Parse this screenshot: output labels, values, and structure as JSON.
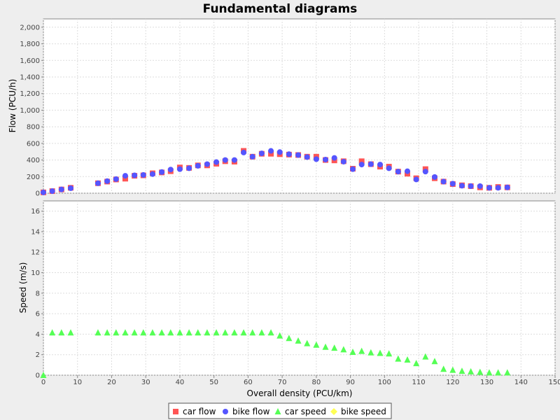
{
  "chart_data": {
    "type": "scatter",
    "title": "Fundamental diagrams",
    "xlabel": "Overall density (PCU/km)",
    "xlim": [
      0,
      150
    ],
    "x_ticks": [
      "0",
      "10",
      "20",
      "30",
      "40",
      "50",
      "60",
      "70",
      "80",
      "90",
      "100",
      "110",
      "120",
      "130",
      "140",
      "150"
    ],
    "grid": true,
    "legend_placement": "bottom",
    "subplots": [
      {
        "name": "flow",
        "ylabel": "Flow (PCU/h)",
        "ylim": [
          0,
          2100
        ],
        "y_ticks": [
          0,
          200,
          400,
          600,
          800,
          1000,
          1200,
          1400,
          1600,
          1800,
          2000
        ],
        "y_tick_labels": [
          "0",
          "200",
          "400",
          "600",
          "800",
          "1,000",
          "1,200",
          "1,400",
          "1,600",
          "1,800",
          "2,000"
        ],
        "series": [
          {
            "name": "car flow",
            "marker": "square",
            "color": "#ff5555",
            "points": [
              [
                0,
                10
              ],
              [
                2.6,
                25
              ],
              [
                5.3,
                45
              ],
              [
                8,
                65
              ],
              [
                16,
                120
              ],
              [
                18.7,
                140
              ],
              [
                21.3,
                165
              ],
              [
                24,
                175
              ],
              [
                26.7,
                210
              ],
              [
                29.3,
                215
              ],
              [
                32,
                240
              ],
              [
                34.7,
                250
              ],
              [
                37.3,
                265
              ],
              [
                40,
                310
              ],
              [
                42.7,
                305
              ],
              [
                45.3,
                335
              ],
              [
                48,
                335
              ],
              [
                50.7,
                355
              ],
              [
                53.3,
                385
              ],
              [
                56,
                380
              ],
              [
                58.7,
                510
              ],
              [
                61.3,
                440
              ],
              [
                64,
                475
              ],
              [
                66.7,
                475
              ],
              [
                69.3,
                470
              ],
              [
                72,
                465
              ],
              [
                74.7,
                460
              ],
              [
                77.3,
                440
              ],
              [
                80,
                440
              ],
              [
                82.7,
                400
              ],
              [
                85.3,
                395
              ],
              [
                88,
                385
              ],
              [
                90.7,
                295
              ],
              [
                93.3,
                385
              ],
              [
                96,
                350
              ],
              [
                98.7,
                320
              ],
              [
                101.3,
                320
              ],
              [
                104,
                260
              ],
              [
                106.7,
                235
              ],
              [
                109.3,
                180
              ],
              [
                112,
                290
              ],
              [
                114.7,
                180
              ],
              [
                117.3,
                140
              ],
              [
                120,
                110
              ],
              [
                122.7,
                95
              ],
              [
                125.3,
                85
              ],
              [
                128,
                70
              ],
              [
                130.7,
                65
              ],
              [
                133.3,
                75
              ],
              [
                136,
                70
              ]
            ]
          },
          {
            "name": "bike flow",
            "marker": "circle",
            "color": "#5555ff",
            "points": [
              [
                0,
                10
              ],
              [
                2.6,
                25
              ],
              [
                5.3,
                45
              ],
              [
                8,
                60
              ],
              [
                16,
                120
              ],
              [
                18.7,
                145
              ],
              [
                21.3,
                170
              ],
              [
                24,
                210
              ],
              [
                26.7,
                215
              ],
              [
                29.3,
                220
              ],
              [
                32,
                230
              ],
              [
                34.7,
                255
              ],
              [
                37.3,
                285
              ],
              [
                40,
                290
              ],
              [
                42.7,
                300
              ],
              [
                45.3,
                330
              ],
              [
                48,
                350
              ],
              [
                50.7,
                375
              ],
              [
                53.3,
                400
              ],
              [
                56,
                400
              ],
              [
                58.7,
                490
              ],
              [
                61.3,
                440
              ],
              [
                64,
                480
              ],
              [
                66.7,
                510
              ],
              [
                69.3,
                495
              ],
              [
                72,
                470
              ],
              [
                74.7,
                460
              ],
              [
                77.3,
                435
              ],
              [
                80,
                410
              ],
              [
                82.7,
                405
              ],
              [
                85.3,
                425
              ],
              [
                88,
                380
              ],
              [
                90.7,
                290
              ],
              [
                93.3,
                345
              ],
              [
                96,
                350
              ],
              [
                98.7,
                345
              ],
              [
                101.3,
                300
              ],
              [
                104,
                260
              ],
              [
                106.7,
                265
              ],
              [
                109.3,
                165
              ],
              [
                112,
                260
              ],
              [
                114.7,
                195
              ],
              [
                117.3,
                140
              ],
              [
                120,
                115
              ],
              [
                122.7,
                90
              ],
              [
                125.3,
                85
              ],
              [
                128,
                85
              ],
              [
                130.7,
                65
              ],
              [
                133.3,
                65
              ],
              [
                136,
                70
              ]
            ]
          }
        ]
      },
      {
        "name": "speed",
        "ylabel": "Speed (m/s)",
        "ylim": [
          0,
          17
        ],
        "y_ticks": [
          0,
          2,
          4,
          6,
          8,
          10,
          12,
          14,
          16
        ],
        "y_tick_labels": [
          "0",
          "2",
          "4",
          "6",
          "8",
          "10",
          "12",
          "14",
          "16"
        ],
        "series": [
          {
            "name": "car speed",
            "marker": "triangle",
            "color": "#55ff55",
            "points": [
              [
                0,
                0
              ],
              [
                2.6,
                4.15
              ],
              [
                5.3,
                4.15
              ],
              [
                8,
                4.15
              ],
              [
                16,
                4.15
              ],
              [
                18.7,
                4.15
              ],
              [
                21.3,
                4.15
              ],
              [
                24,
                4.15
              ],
              [
                26.7,
                4.15
              ],
              [
                29.3,
                4.15
              ],
              [
                32,
                4.15
              ],
              [
                34.7,
                4.15
              ],
              [
                37.3,
                4.15
              ],
              [
                40,
                4.15
              ],
              [
                42.7,
                4.15
              ],
              [
                45.3,
                4.15
              ],
              [
                48,
                4.15
              ],
              [
                50.7,
                4.15
              ],
              [
                53.3,
                4.15
              ],
              [
                56,
                4.15
              ],
              [
                58.7,
                4.15
              ],
              [
                61.3,
                4.15
              ],
              [
                64,
                4.15
              ],
              [
                66.7,
                4.15
              ],
              [
                69.3,
                3.85
              ],
              [
                72,
                3.6
              ],
              [
                74.7,
                3.35
              ],
              [
                77.3,
                3.1
              ],
              [
                80,
                2.95
              ],
              [
                82.7,
                2.75
              ],
              [
                85.3,
                2.65
              ],
              [
                88,
                2.5
              ],
              [
                90.7,
                2.25
              ],
              [
                93.3,
                2.35
              ],
              [
                96,
                2.2
              ],
              [
                98.7,
                2.15
              ],
              [
                101.3,
                2.1
              ],
              [
                104,
                1.6
              ],
              [
                106.7,
                1.5
              ],
              [
                109.3,
                1.15
              ],
              [
                112,
                1.8
              ],
              [
                114.7,
                1.35
              ],
              [
                117.3,
                0.6
              ],
              [
                120,
                0.5
              ],
              [
                122.7,
                0.4
              ],
              [
                125.3,
                0.35
              ],
              [
                128,
                0.3
              ],
              [
                130.7,
                0.25
              ],
              [
                133.3,
                0.25
              ],
              [
                136,
                0.25
              ]
            ]
          },
          {
            "name": "bike speed",
            "marker": "diamond",
            "color": "#ffff55",
            "points": []
          }
        ]
      }
    ],
    "legend": [
      {
        "label": "car flow",
        "marker": "square",
        "color": "#ff5555"
      },
      {
        "label": "bike flow",
        "marker": "circle",
        "color": "#5555ff"
      },
      {
        "label": "car speed",
        "marker": "triangle",
        "color": "#55ff55"
      },
      {
        "label": "bike speed",
        "marker": "diamond",
        "color": "#ffff55"
      }
    ]
  }
}
